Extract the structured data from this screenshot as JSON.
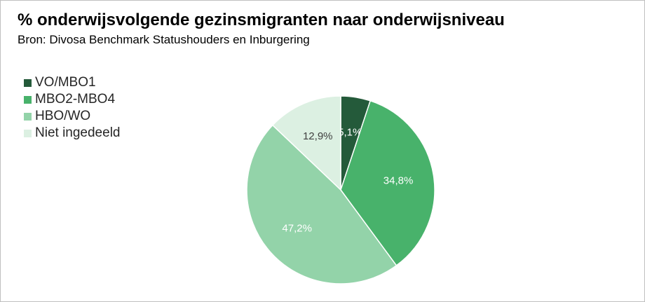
{
  "chart_data": {
    "type": "pie",
    "title": "% onderwijsvolgende gezinsmigranten naar onderwijsniveau",
    "subtitle": "Bron: Divosa Benchmark Statushouders en Inburgering",
    "legend_position": "top-left",
    "slices": [
      {
        "name": "VO/MBO1",
        "value": 5.1,
        "label": "5,1%",
        "color": "#245a3a",
        "label_color": "#ffffff"
      },
      {
        "name": "MBO2-MBO4",
        "value": 34.8,
        "label": "34,8%",
        "color": "#48b26b",
        "label_color": "#ffffff"
      },
      {
        "name": "HBO/WO",
        "value": 47.2,
        "label": "47,2%",
        "color": "#93d3a9",
        "label_color": "#ffffff"
      },
      {
        "name": "Niet ingedeeld",
        "value": 12.9,
        "label": "12,9%",
        "color": "#dcf0e2",
        "label_color": "#404040"
      }
    ]
  }
}
